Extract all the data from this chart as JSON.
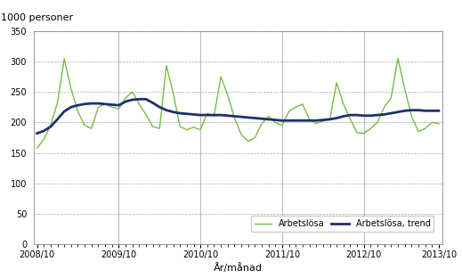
{
  "ylabel": "1000 personer",
  "xlabel": "År/månad",
  "ylim": [
    0,
    350
  ],
  "yticks": [
    0,
    50,
    100,
    150,
    200,
    250,
    300,
    350
  ],
  "xtick_labels": [
    "2008/10",
    "2009/10",
    "2010/10",
    "2011/10",
    "2012/10",
    "2013/10"
  ],
  "xtick_positions": [
    0,
    12,
    24,
    36,
    48,
    59
  ],
  "arbetslosa": [
    158,
    172,
    195,
    232,
    304,
    255,
    218,
    195,
    190,
    225,
    230,
    225,
    222,
    240,
    250,
    230,
    213,
    193,
    190,
    293,
    248,
    193,
    188,
    192,
    188,
    215,
    210,
    275,
    245,
    207,
    180,
    169,
    175,
    198,
    210,
    200,
    195,
    218,
    225,
    230,
    205,
    198,
    202,
    205,
    265,
    230,
    205,
    183,
    182,
    190,
    200,
    225,
    240,
    305,
    255,
    210,
    185,
    190,
    200,
    198
  ],
  "trend": [
    182,
    186,
    193,
    205,
    218,
    225,
    228,
    230,
    231,
    231,
    230,
    229,
    228,
    234,
    237,
    238,
    238,
    232,
    225,
    220,
    217,
    215,
    214,
    213,
    212,
    212,
    212,
    212,
    211,
    210,
    209,
    208,
    207,
    206,
    205,
    204,
    203,
    203,
    203,
    203,
    203,
    203,
    204,
    205,
    207,
    210,
    212,
    212,
    211,
    211,
    212,
    213,
    215,
    217,
    219,
    220,
    220,
    219,
    219,
    219
  ],
  "n_points": 60,
  "line_color_arbetslosa": "#77bb44",
  "line_color_trend": "#1f2f6e",
  "background_color": "#ffffff",
  "grid_color": "#aaaaaa",
  "vline_color": "#aaaaaa",
  "legend_label_1": "Arbetslösa",
  "legend_label_2": "Arbetslösa, trend",
  "vline_positions": [
    12,
    24,
    36,
    48
  ],
  "figsize": [
    5.19,
    3.12
  ],
  "dpi": 100,
  "title_fontsize": 8,
  "tick_fontsize": 7,
  "label_fontsize": 8,
  "legend_fontsize": 7
}
